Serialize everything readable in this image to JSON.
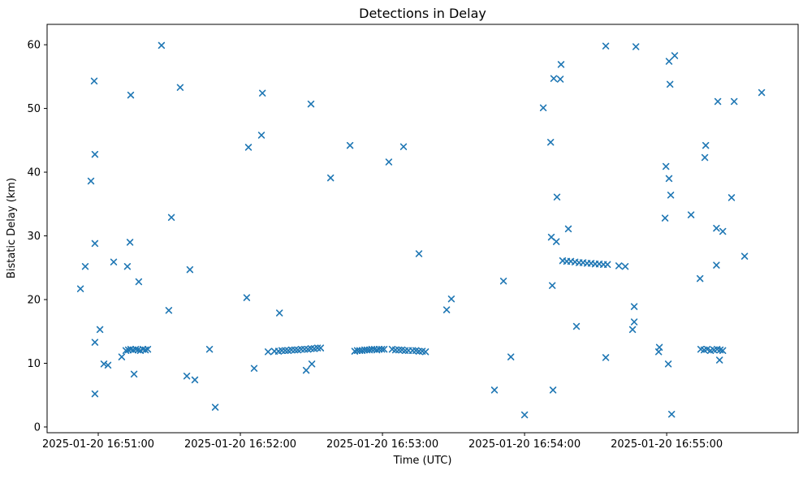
{
  "figure": {
    "title": "Detections in Delay",
    "xlabel": "Time (UTC)",
    "ylabel": "Bistatic Delay (km)"
  },
  "chart_data": {
    "type": "scatter",
    "title": "Detections in Delay",
    "xlabel": "Time (UTC)",
    "ylabel": "Bistatic Delay (km)",
    "marker": "x",
    "marker_color": "#1f77b4",
    "grid": false,
    "legend": "none",
    "x_unit": "seconds since 2025-01-20 16:51:00",
    "xlim_seconds": [
      -21.6,
      295.5
    ],
    "ylim": [
      -0.9,
      63.2
    ],
    "x_ticks": [
      {
        "t": 0,
        "label": "2025-01-20 16:51:00"
      },
      {
        "t": 60,
        "label": "2025-01-20 16:52:00"
      },
      {
        "t": 120,
        "label": "2025-01-20 16:53:00"
      },
      {
        "t": 180,
        "label": "2025-01-20 16:54:00"
      },
      {
        "t": 240,
        "label": "2025-01-20 16:55:00"
      }
    ],
    "y_ticks": [
      0,
      10,
      20,
      30,
      40,
      50,
      60
    ],
    "points": [
      [
        -7.5,
        21.7
      ],
      [
        -5.5,
        25.2
      ],
      [
        -3.1,
        38.6
      ],
      [
        -1.7,
        54.3
      ],
      [
        -1.4,
        42.8
      ],
      [
        -1.4,
        28.8
      ],
      [
        -1.4,
        13.3
      ],
      [
        -1.4,
        5.2
      ],
      [
        0.7,
        15.3
      ],
      [
        2.4,
        9.9
      ],
      [
        4.1,
        9.7
      ],
      [
        6.5,
        25.9
      ],
      [
        9.9,
        11.0
      ],
      [
        11.7,
        12.0
      ],
      [
        12.3,
        25.2
      ],
      [
        12.7,
        12.1
      ],
      [
        13.4,
        29.0
      ],
      [
        13.7,
        52.1
      ],
      [
        13.7,
        12.2
      ],
      [
        14.7,
        12.1
      ],
      [
        15.1,
        8.3
      ],
      [
        15.8,
        12.2
      ],
      [
        16.8,
        12.1
      ],
      [
        17.1,
        22.8
      ],
      [
        17.8,
        12.0
      ],
      [
        18.9,
        12.2
      ],
      [
        19.9,
        12.1
      ],
      [
        20.9,
        12.2
      ],
      [
        26.7,
        59.9
      ],
      [
        29.8,
        18.3
      ],
      [
        30.9,
        32.9
      ],
      [
        34.6,
        53.3
      ],
      [
        37.4,
        8.0
      ],
      [
        38.7,
        24.7
      ],
      [
        40.8,
        7.4
      ],
      [
        47.0,
        12.2
      ],
      [
        49.4,
        3.1
      ],
      [
        62.7,
        20.3
      ],
      [
        63.4,
        43.9
      ],
      [
        65.8,
        9.2
      ],
      [
        68.9,
        45.8
      ],
      [
        69.3,
        52.4
      ],
      [
        71.7,
        11.8
      ],
      [
        74.4,
        11.9
      ],
      [
        76.1,
        11.9
      ],
      [
        76.5,
        17.9
      ],
      [
        77.5,
        12.0
      ],
      [
        78.9,
        12.0
      ],
      [
        80.2,
        12.0
      ],
      [
        81.6,
        12.1
      ],
      [
        83.0,
        12.1
      ],
      [
        84.3,
        12.1
      ],
      [
        85.7,
        12.2
      ],
      [
        87.1,
        12.2
      ],
      [
        87.8,
        8.9
      ],
      [
        88.5,
        12.2
      ],
      [
        89.8,
        50.7
      ],
      [
        89.8,
        12.3
      ],
      [
        90.2,
        9.9
      ],
      [
        91.2,
        12.3
      ],
      [
        92.6,
        12.4
      ],
      [
        93.9,
        12.4
      ],
      [
        98.1,
        39.1
      ],
      [
        106.3,
        44.2
      ],
      [
        108.3,
        11.9
      ],
      [
        109.4,
        12.0
      ],
      [
        110.4,
        12.0
      ],
      [
        111.4,
        12.0
      ],
      [
        112.5,
        12.1
      ],
      [
        113.5,
        12.1
      ],
      [
        114.5,
        12.1
      ],
      [
        115.5,
        12.2
      ],
      [
        116.6,
        12.2
      ],
      [
        117.6,
        12.1
      ],
      [
        118.6,
        12.2
      ],
      [
        119.7,
        12.2
      ],
      [
        120.7,
        12.2
      ],
      [
        122.7,
        41.6
      ],
      [
        124.1,
        12.2
      ],
      [
        125.5,
        12.1
      ],
      [
        126.9,
        12.1
      ],
      [
        128.2,
        12.1
      ],
      [
        128.9,
        44.0
      ],
      [
        129.6,
        12.0
      ],
      [
        131.0,
        12.0
      ],
      [
        132.7,
        12.0
      ],
      [
        134.1,
        12.0
      ],
      [
        135.4,
        27.2
      ],
      [
        135.4,
        11.9
      ],
      [
        136.8,
        11.9
      ],
      [
        138.2,
        11.8
      ],
      [
        147.1,
        18.4
      ],
      [
        149.1,
        20.1
      ],
      [
        167.3,
        5.8
      ],
      [
        171.1,
        22.9
      ],
      [
        174.2,
        11.0
      ],
      [
        180.0,
        1.9
      ],
      [
        187.9,
        50.1
      ],
      [
        191.0,
        44.7
      ],
      [
        191.3,
        29.8
      ],
      [
        191.7,
        22.2
      ],
      [
        192.0,
        5.8
      ],
      [
        192.3,
        54.7
      ],
      [
        193.4,
        29.1
      ],
      [
        193.7,
        36.1
      ],
      [
        195.1,
        54.6
      ],
      [
        195.4,
        56.9
      ],
      [
        196.1,
        26.1
      ],
      [
        197.8,
        26.0
      ],
      [
        198.5,
        31.1
      ],
      [
        199.5,
        26.0
      ],
      [
        201.3,
        25.9
      ],
      [
        201.9,
        15.8
      ],
      [
        203.0,
        25.8
      ],
      [
        204.7,
        25.8
      ],
      [
        206.4,
        25.7
      ],
      [
        208.1,
        25.7
      ],
      [
        209.8,
        25.6
      ],
      [
        211.5,
        25.6
      ],
      [
        213.3,
        25.5
      ],
      [
        214.3,
        59.8
      ],
      [
        214.3,
        10.9
      ],
      [
        215.0,
        25.5
      ],
      [
        219.8,
        25.3
      ],
      [
        222.5,
        25.2
      ],
      [
        225.6,
        15.3
      ],
      [
        226.3,
        18.9
      ],
      [
        226.3,
        16.5
      ],
      [
        227.0,
        59.7
      ],
      [
        236.6,
        11.8
      ],
      [
        236.9,
        12.5
      ],
      [
        239.3,
        32.8
      ],
      [
        239.7,
        40.9
      ],
      [
        240.7,
        9.9
      ],
      [
        241.0,
        57.4
      ],
      [
        241.0,
        39.0
      ],
      [
        241.4,
        53.8
      ],
      [
        241.7,
        36.4
      ],
      [
        242.1,
        2.0
      ],
      [
        243.4,
        58.3
      ],
      [
        250.3,
        33.3
      ],
      [
        254.1,
        23.3
      ],
      [
        254.4,
        12.2
      ],
      [
        255.8,
        12.1
      ],
      [
        256.1,
        42.3
      ],
      [
        256.5,
        44.2
      ],
      [
        257.1,
        12.2
      ],
      [
        258.5,
        12.0
      ],
      [
        259.9,
        12.1
      ],
      [
        261.0,
        31.2
      ],
      [
        261.0,
        25.4
      ],
      [
        261.3,
        12.2
      ],
      [
        261.6,
        51.1
      ],
      [
        262.3,
        10.5
      ],
      [
        262.6,
        12.1
      ],
      [
        263.7,
        30.7
      ],
      [
        263.7,
        12.0
      ],
      [
        267.4,
        36.0
      ],
      [
        268.5,
        51.1
      ],
      [
        272.9,
        26.8
      ],
      [
        280.1,
        52.5
      ]
    ]
  }
}
